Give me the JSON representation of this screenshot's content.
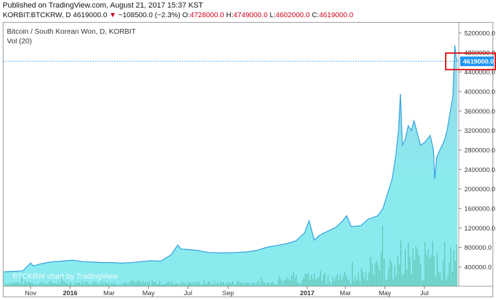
{
  "header": {
    "published": "Published on TradingView.com, August 21, 2017 15:37 KST",
    "symbol": "KORBIT:BTCKRW, D",
    "last": "4619000.0",
    "arrow": "▼",
    "change": "−108500.0 (−2.3%)",
    "o_label": "O:",
    "o_value": "4728000.0",
    "h_label": "H:",
    "h_value": "4749000.0",
    "l_label": "L:",
    "l_value": "4602000.0",
    "c_label": "C:",
    "c_value": "4619000.0"
  },
  "legend": {
    "title": "Bitcoin / South Korean Won, D, KORBIT",
    "volume": "Vol (20)"
  },
  "watermark": "BTCKRW chart by TradingView",
  "colors": {
    "area_fill": "#7de8ec",
    "area_fill_top": "#8fd0e6",
    "line": "#2d9ee0",
    "volume": "#4db39a",
    "price_tag": "#2196f3",
    "highlight_box": "#e0181a"
  },
  "chart_data": {
    "type": "area",
    "title": "Bitcoin / South Korean Won, D, KORBIT",
    "series": [
      {
        "name": "",
        "x": [
          "2015-09-20",
          "2015-10-05",
          "2015-10-20",
          "2015-11-01",
          "2015-11-05",
          "2015-11-15",
          "2015-12-01",
          "2015-12-20",
          "2016-01-05",
          "2016-01-20",
          "2016-02-05",
          "2016-02-20",
          "2016-03-05",
          "2016-03-20",
          "2016-04-05",
          "2016-04-20",
          "2016-05-05",
          "2016-05-20",
          "2016-06-05",
          "2016-06-15",
          "2016-06-20",
          "2016-07-01",
          "2016-07-15",
          "2016-08-01",
          "2016-08-15",
          "2016-09-01",
          "2016-09-15",
          "2016-10-01",
          "2016-10-15",
          "2016-11-01",
          "2016-11-15",
          "2016-12-01",
          "2016-12-15",
          "2016-12-28",
          "2017-01-04",
          "2017-01-08",
          "2017-01-12",
          "2017-01-20",
          "2017-02-01",
          "2017-02-15",
          "2017-02-25",
          "2017-03-03",
          "2017-03-10",
          "2017-03-20",
          "2017-03-25",
          "2017-04-05",
          "2017-04-20",
          "2017-04-28",
          "2017-05-05",
          "2017-05-12",
          "2017-05-18",
          "2017-05-22",
          "2017-05-25",
          "2017-05-28",
          "2017-06-01",
          "2017-06-06",
          "2017-06-11",
          "2017-06-15",
          "2017-06-20",
          "2017-06-25",
          "2017-07-01",
          "2017-07-10",
          "2017-07-15",
          "2017-07-17",
          "2017-07-20",
          "2017-07-25",
          "2017-08-01",
          "2017-08-05",
          "2017-08-10",
          "2017-08-14",
          "2017-08-17",
          "2017-08-19",
          "2017-08-21"
        ],
        "values": [
          300000,
          310000,
          320000,
          480000,
          420000,
          460000,
          500000,
          520000,
          540000,
          510000,
          500000,
          490000,
          490000,
          480000,
          490000,
          510000,
          530000,
          520000,
          650000,
          850000,
          770000,
          760000,
          740000,
          700000,
          690000,
          690000,
          700000,
          710000,
          740000,
          810000,
          840000,
          880000,
          940000,
          1100000,
          1350000,
          1150000,
          950000,
          1050000,
          1130000,
          1220000,
          1350000,
          1450000,
          1230000,
          1240000,
          1250000,
          1380000,
          1450000,
          1600000,
          1900000,
          2200000,
          2700000,
          3200000,
          3950000,
          2900000,
          3000000,
          3300000,
          3200000,
          3400000,
          3150000,
          2900000,
          2950000,
          3100000,
          2800000,
          2200000,
          2650000,
          2800000,
          3000000,
          3200000,
          3600000,
          3900000,
          4950000,
          4700000,
          4619000
        ]
      },
      {
        "name": "Vol (20)",
        "values_note": "volume bars"
      }
    ],
    "ylim": [
      0,
      5500000
    ],
    "yticks": [
      "400000.0",
      "800000.0",
      "1200000.0",
      "1600000.0",
      "2000000.0",
      "2400000.0",
      "2800000.0",
      "3200000.0",
      "3600000.0",
      "4000000.0",
      "4400000.0",
      "4800000.0",
      "5200000.0"
    ],
    "ytick_values": [
      400000,
      800000,
      1200000,
      1600000,
      2000000,
      2400000,
      2800000,
      3200000,
      3600000,
      4000000,
      4400000,
      4800000,
      5200000
    ],
    "xticks": [
      {
        "label": "Nov",
        "date": "2015-11-01",
        "bold": false
      },
      {
        "label": "2016",
        "date": "2016-01-01",
        "bold": true
      },
      {
        "label": "Mar",
        "date": "2016-03-01",
        "bold": false
      },
      {
        "label": "May",
        "date": "2016-05-01",
        "bold": false
      },
      {
        "label": "Jul",
        "date": "2016-07-01",
        "bold": false
      },
      {
        "label": "Sep",
        "date": "2016-09-01",
        "bold": false
      },
      {
        "label": "2017",
        "date": "2017-01-01",
        "bold": true
      },
      {
        "label": "Mar",
        "date": "2017-03-01",
        "bold": false
      },
      {
        "label": "May",
        "date": "2017-05-01",
        "bold": false
      },
      {
        "label": "Jul",
        "date": "2017-07-01",
        "bold": false
      }
    ],
    "current_price": 4619000,
    "current_price_label": "4619000.0",
    "grid": false,
    "legend_position": "top-left"
  }
}
